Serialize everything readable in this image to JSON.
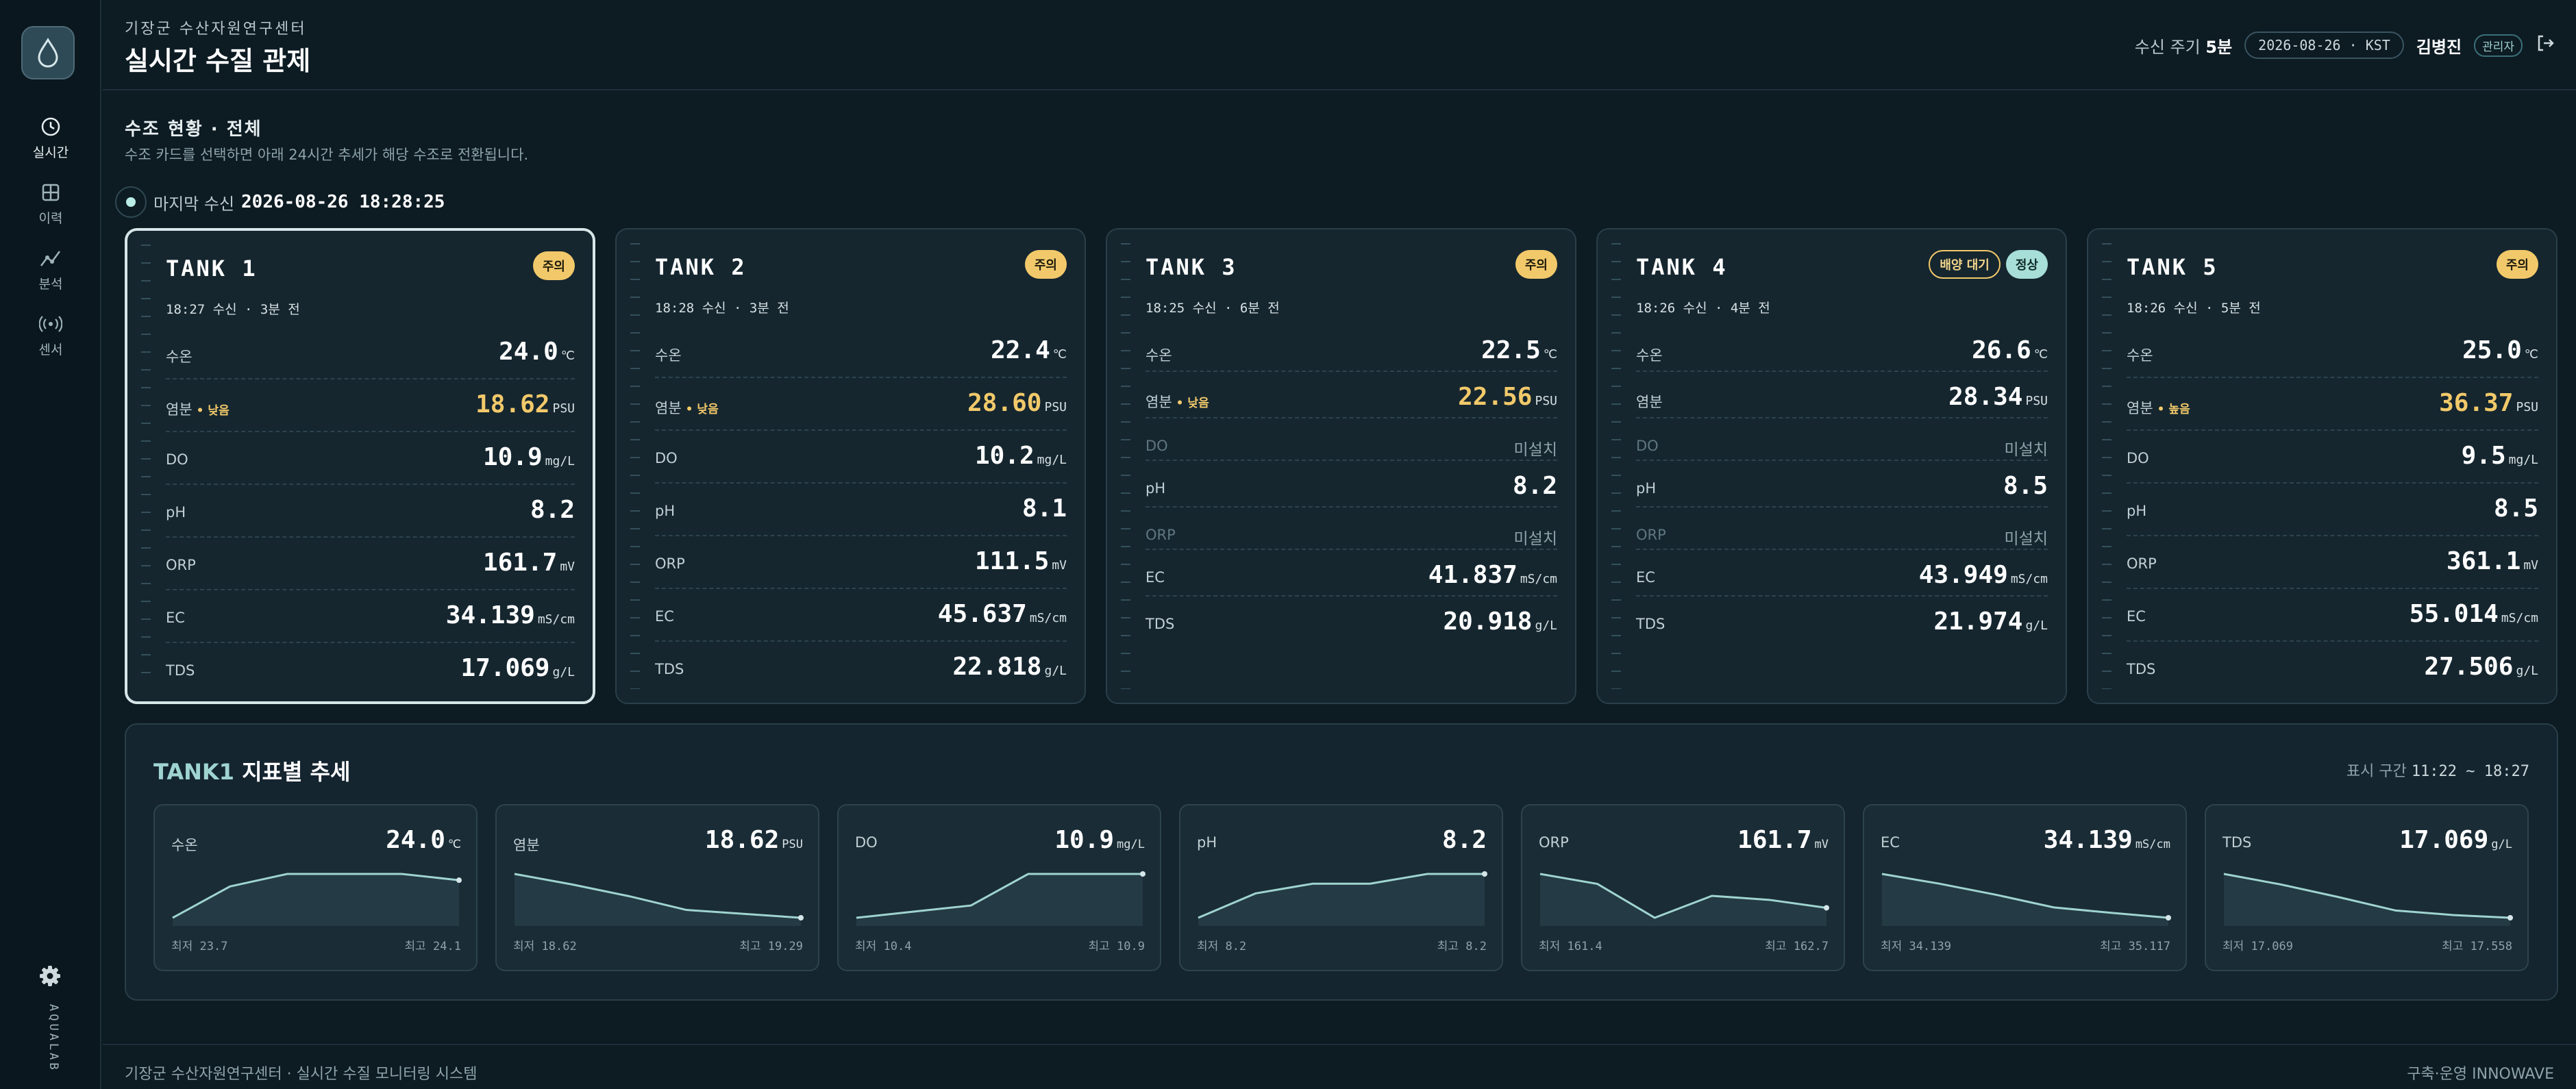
{
  "sidebar": {
    "logo_icon": "water-drop-icon",
    "items": [
      {
        "label": "실시간",
        "icon": "clock-icon",
        "active": true
      },
      {
        "label": "이력",
        "icon": "grid-icon"
      },
      {
        "label": "분석",
        "icon": "analysis-icon"
      },
      {
        "label": "센서",
        "icon": "sensor-icon"
      }
    ],
    "settings_icon": "gear-icon",
    "brand": "AQUALAB"
  },
  "header": {
    "org": "기장군 수산자원연구센터",
    "title": "실시간 수질 관제",
    "interval_label": "수신 주기",
    "interval_value": "5분",
    "datetime": "2026-08-26 · KST",
    "user": "김병진",
    "role": "관리자",
    "logout_icon": "logout-icon"
  },
  "section": {
    "title": "수조 현황 · 전체",
    "subtitle": "수조 카드를 선택하면 아래 24시간 추세가 해당 수조로 전환됩니다.",
    "last_label": "마지막 수신",
    "last_time": "2026-08-26 18:28:25"
  },
  "tanks": [
    {
      "name": "TANK 1",
      "time": "18:27 수신 · 3분 전",
      "badges": [
        {
          "text": "주의",
          "style": "warn"
        }
      ],
      "rows": [
        {
          "label": "수온",
          "value": "24.0",
          "unit": "℃"
        },
        {
          "label": "염분",
          "flag": "• 낮음",
          "value": "18.62",
          "unit": "PSU",
          "warn": true
        },
        {
          "label": "DO",
          "value": "10.9",
          "unit": "mg/L"
        },
        {
          "label": "pH",
          "value": "8.2",
          "unit": ""
        },
        {
          "label": "ORP",
          "value": "161.7",
          "unit": "mV"
        },
        {
          "label": "EC",
          "value": "34.139",
          "unit": "mS/cm"
        },
        {
          "label": "TDS",
          "value": "17.069",
          "unit": "g/L"
        }
      ]
    },
    {
      "name": "TANK 2",
      "time": "18:28 수신 · 3분 전",
      "badges": [
        {
          "text": "주의",
          "style": "warn"
        }
      ],
      "rows": [
        {
          "label": "수온",
          "value": "22.4",
          "unit": "℃"
        },
        {
          "label": "염분",
          "flag": "• 낮음",
          "value": "28.60",
          "unit": "PSU",
          "warn": true
        },
        {
          "label": "DO",
          "value": "10.2",
          "unit": "mg/L"
        },
        {
          "label": "pH",
          "value": "8.1",
          "unit": ""
        },
        {
          "label": "ORP",
          "value": "111.5",
          "unit": "mV"
        },
        {
          "label": "EC",
          "value": "45.637",
          "unit": "mS/cm"
        },
        {
          "label": "TDS",
          "value": "22.818",
          "unit": "g/L"
        }
      ]
    },
    {
      "name": "TANK 3",
      "time": "18:25 수신 · 6분 전",
      "badges": [
        {
          "text": "주의",
          "style": "warn"
        }
      ],
      "rows": [
        {
          "label": "수온",
          "value": "22.5",
          "unit": "℃"
        },
        {
          "label": "염분",
          "flag": "• 낮음",
          "value": "22.56",
          "unit": "PSU",
          "warn": true
        },
        {
          "label": "DO",
          "na": "미설치"
        },
        {
          "label": "pH",
          "value": "8.2",
          "unit": ""
        },
        {
          "label": "ORP",
          "na": "미설치"
        },
        {
          "label": "EC",
          "value": "41.837",
          "unit": "mS/cm"
        },
        {
          "label": "TDS",
          "value": "20.918",
          "unit": "g/L"
        }
      ]
    },
    {
      "name": "TANK 4",
      "time": "18:26 수신 · 4분 전",
      "badges": [
        {
          "text": "배양 대기",
          "style": "outline"
        },
        {
          "text": "정상",
          "style": "ok"
        }
      ],
      "rows": [
        {
          "label": "수온",
          "value": "26.6",
          "unit": "℃"
        },
        {
          "label": "염분",
          "value": "28.34",
          "unit": "PSU"
        },
        {
          "label": "DO",
          "na": "미설치"
        },
        {
          "label": "pH",
          "value": "8.5",
          "unit": ""
        },
        {
          "label": "ORP",
          "na": "미설치"
        },
        {
          "label": "EC",
          "value": "43.949",
          "unit": "mS/cm"
        },
        {
          "label": "TDS",
          "value": "21.974",
          "unit": "g/L"
        }
      ]
    },
    {
      "name": "TANK 5",
      "time": "18:26 수신 · 5분 전",
      "badges": [
        {
          "text": "주의",
          "style": "warn"
        }
      ],
      "rows": [
        {
          "label": "수온",
          "value": "25.0",
          "unit": "℃"
        },
        {
          "label": "염분",
          "flag": "• 높음",
          "value": "36.37",
          "unit": "PSU",
          "warn": true
        },
        {
          "label": "DO",
          "value": "9.5",
          "unit": "mg/L"
        },
        {
          "label": "pH",
          "value": "8.5",
          "unit": ""
        },
        {
          "label": "ORP",
          "value": "361.1",
          "unit": "mV"
        },
        {
          "label": "EC",
          "value": "55.014",
          "unit": "mS/cm"
        },
        {
          "label": "TDS",
          "value": "27.506",
          "unit": "g/L"
        }
      ]
    }
  ],
  "trend": {
    "tank": "TANK1",
    "title": "지표별 추세",
    "range_label": "표시 구간",
    "range": "11:22 ~ 18:27",
    "cards": [
      {
        "label": "수온",
        "value": "24.0",
        "unit": "℃",
        "min": "최저 23.7",
        "max": "최고 24.1",
        "points": [
          23.7,
          23.95,
          24.05,
          24.05,
          24.05,
          24.0
        ]
      },
      {
        "label": "염분",
        "value": "18.62",
        "unit": "PSU",
        "min": "최저 18.62",
        "max": "최고 19.29",
        "points": [
          19.29,
          19.13,
          18.95,
          18.74,
          18.68,
          18.62
        ]
      },
      {
        "label": "DO",
        "value": "10.9",
        "unit": "mg/L",
        "min": "최저 10.4",
        "max": "최고 10.9",
        "points": [
          10.4,
          10.47,
          10.54,
          10.9,
          10.9,
          10.9
        ]
      },
      {
        "label": "pH",
        "value": "8.2",
        "unit": "",
        "min": "최저 8.2",
        "max": "최고 8.2",
        "points": [
          8.16,
          8.185,
          8.195,
          8.195,
          8.205,
          8.205
        ]
      },
      {
        "label": "ORP",
        "value": "161.7",
        "unit": "mV",
        "min": "최저 161.4",
        "max": "최고 162.7",
        "points": [
          162.6,
          162.35,
          161.5,
          162.05,
          161.95,
          161.75
        ]
      },
      {
        "label": "EC",
        "value": "34.139",
        "unit": "mS/cm",
        "min": "최저 34.139",
        "max": "최고 35.117",
        "points": [
          35.117,
          34.9,
          34.65,
          34.37,
          34.25,
          34.139
        ]
      },
      {
        "label": "TDS",
        "value": "17.069",
        "unit": "g/L",
        "min": "최저 17.069",
        "max": "최고 17.558",
        "points": [
          17.558,
          17.44,
          17.3,
          17.15,
          17.1,
          17.069
        ]
      }
    ]
  },
  "footer": {
    "left": "기장군 수산자원연구센터 · 실시간 수질 모니터링 시스템",
    "right": "구축·운영 INNOWAVE"
  },
  "colors": {
    "background": "#0d1b23",
    "card": "#15262f",
    "accent": "#9fd4d0",
    "warn": "#f2c96a",
    "ok": "#a7ded8"
  }
}
